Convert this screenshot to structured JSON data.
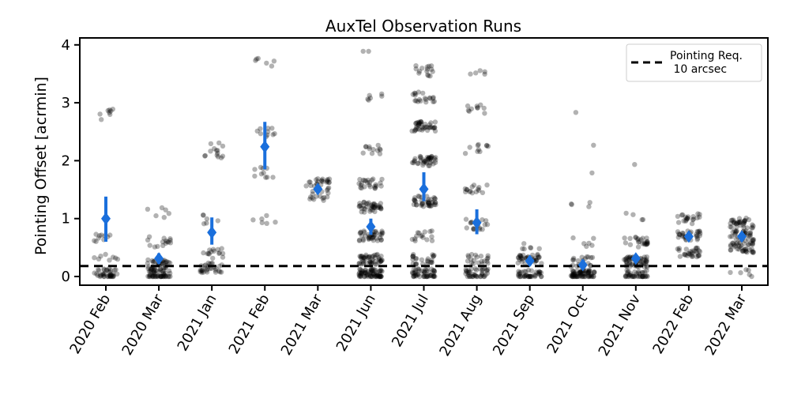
{
  "chart_data": {
    "type": "scatter",
    "title": "AuxTel Observation Runs",
    "xlabel": "",
    "ylabel": "Pointing Offset [acrmin]",
    "ylim": [
      -0.15,
      4.12
    ],
    "yticks": [
      0,
      1,
      2,
      3,
      4
    ],
    "categories": [
      "2020 Feb",
      "2020 Mar",
      "2021 Jan",
      "2021 Feb",
      "2021 Mar",
      "2021 Jun",
      "2021 Jul",
      "2021 Aug",
      "2021 Sep",
      "2021 Oct",
      "2021 Nov",
      "2022 Feb",
      "2022 Mar"
    ],
    "means": [
      1.0,
      0.31,
      0.76,
      2.24,
      1.51,
      0.86,
      1.51,
      0.93,
      0.27,
      0.2,
      0.31,
      0.69,
      0.69
    ],
    "err_low": [
      0.6,
      0.22,
      0.55,
      1.85,
      1.45,
      0.72,
      1.3,
      0.73,
      0.19,
      0.12,
      0.25,
      0.62,
      0.62
    ],
    "err_high": [
      1.38,
      0.4,
      1.02,
      2.67,
      1.57,
      1.0,
      1.8,
      1.16,
      0.34,
      0.29,
      0.38,
      0.76,
      0.76
    ],
    "point_clusters": [
      [
        [
          0.05,
          40
        ],
        [
          0.3,
          8
        ],
        [
          0.65,
          10
        ],
        [
          2.8,
          8
        ]
      ],
      [
        [
          0.02,
          50
        ],
        [
          0.2,
          40
        ],
        [
          0.6,
          15
        ],
        [
          1.1,
          6
        ]
      ],
      [
        [
          0.15,
          30
        ],
        [
          0.4,
          15
        ],
        [
          1.0,
          6
        ],
        [
          2.1,
          8
        ],
        [
          2.25,
          6
        ]
      ],
      [
        [
          1.0,
          6
        ],
        [
          1.8,
          10
        ],
        [
          2.5,
          10
        ],
        [
          3.7,
          6
        ]
      ],
      [
        [
          1.4,
          15
        ],
        [
          1.6,
          25
        ]
      ],
      [
        [
          0.05,
          70
        ],
        [
          0.3,
          50
        ],
        [
          0.7,
          40
        ],
        [
          1.2,
          40
        ],
        [
          1.6,
          25
        ],
        [
          2.2,
          12
        ],
        [
          3.1,
          6
        ],
        [
          3.9,
          2
        ]
      ],
      [
        [
          0.05,
          50
        ],
        [
          0.3,
          25
        ],
        [
          0.7,
          15
        ],
        [
          1.3,
          40
        ],
        [
          2.0,
          40
        ],
        [
          2.6,
          40
        ],
        [
          3.1,
          20
        ],
        [
          3.55,
          15
        ]
      ],
      [
        [
          0.05,
          40
        ],
        [
          0.3,
          20
        ],
        [
          0.9,
          20
        ],
        [
          1.5,
          15
        ],
        [
          2.2,
          10
        ],
        [
          2.9,
          10
        ],
        [
          3.5,
          5
        ]
      ],
      [
        [
          0.02,
          40
        ],
        [
          0.3,
          35
        ],
        [
          0.55,
          6
        ]
      ],
      [
        [
          0.02,
          70
        ],
        [
          0.25,
          20
        ],
        [
          0.6,
          6
        ],
        [
          1.2,
          4
        ],
        [
          1.8,
          1
        ],
        [
          2.3,
          1
        ],
        [
          2.75,
          1
        ]
      ],
      [
        [
          0.02,
          40
        ],
        [
          0.25,
          60
        ],
        [
          0.6,
          25
        ],
        [
          1.05,
          4
        ],
        [
          2.0,
          1
        ]
      ],
      [
        [
          0.42,
          30
        ],
        [
          0.7,
          30
        ],
        [
          1.0,
          20
        ]
      ],
      [
        [
          0.07,
          6
        ],
        [
          0.5,
          40
        ],
        [
          0.7,
          35
        ],
        [
          0.93,
          35
        ]
      ]
    ],
    "reference_line": {
      "value": 0.18,
      "style": "dashed",
      "color": "#000000"
    },
    "legend": {
      "entries": [
        "Pointing Req.\n 10 arcsec"
      ],
      "position": "top-right"
    },
    "colors": {
      "points": "#000000",
      "mean": "#1a6fdc",
      "errorbar": "#1a6fdc"
    },
    "grid": false
  }
}
